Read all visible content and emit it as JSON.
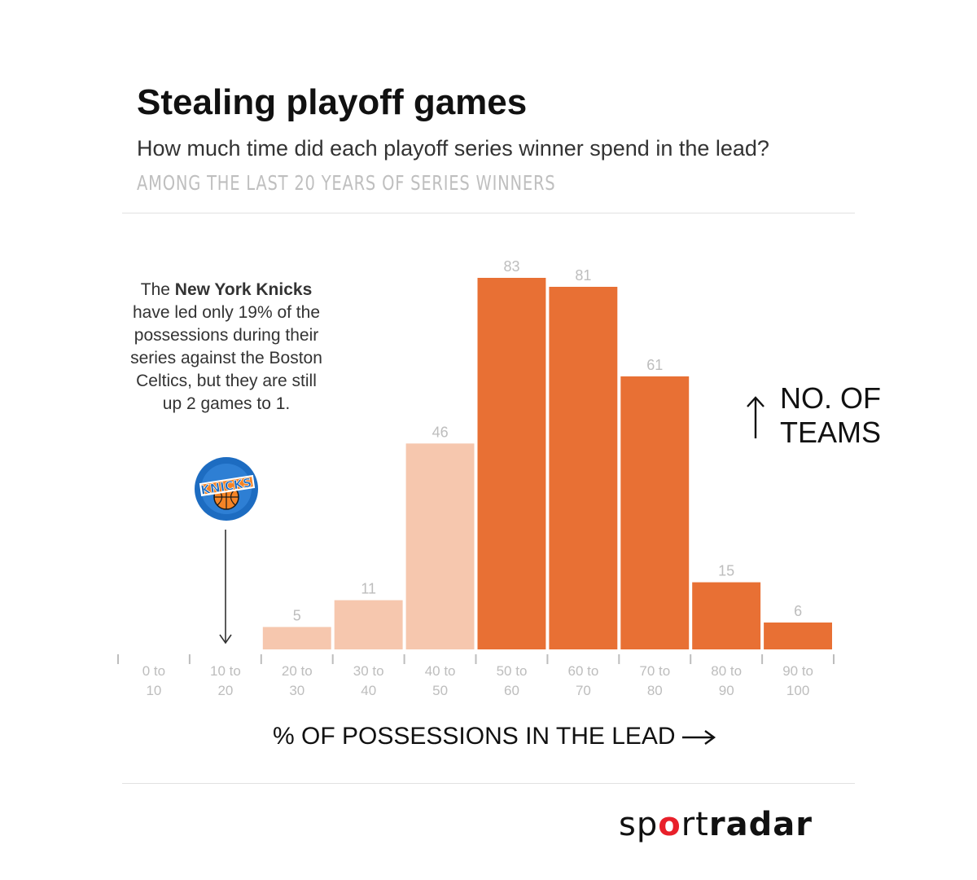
{
  "header": {
    "title": "Stealing playoff games",
    "subtitle": "How much time did each playoff series winner spend in the lead?",
    "kicker": "AMONG THE LAST 20 YEARS OF SERIES WINNERS"
  },
  "annotation": {
    "prefix": "The",
    "team": "New York Knicks",
    "text": "have led only 19% of the possessions during their series against the Boston Celtics, but they are still up 2 games to 1.",
    "logo_text": "KNICKS"
  },
  "y_axis_note": {
    "line1": "NO. OF",
    "line2": "TEAMS"
  },
  "x_axis_title": "% OF POSSESSIONS IN THE LEAD",
  "brand": {
    "part1": "sp",
    "part2": "o",
    "part3": "rt",
    "part4": "radar"
  },
  "colors": {
    "bar_light": "#f6c7ae",
    "bar_dark": "#e87034",
    "value_label": "#bdbdbd",
    "tick_label": "#bdbdbd",
    "knicks_blue": "#1d6cc1",
    "knicks_orange": "#f58426",
    "brand_red": "#e8202a"
  },
  "chart_data": {
    "type": "bar",
    "categories": [
      "0 to 10",
      "10 to 20",
      "20 to 30",
      "30 to 40",
      "40 to 50",
      "50 to 60",
      "60 to 70",
      "70 to 80",
      "80 to 90",
      "90 to 100"
    ],
    "category_lines": [
      [
        "0 to",
        "10"
      ],
      [
        "10 to",
        "20"
      ],
      [
        "20 to",
        "30"
      ],
      [
        "30 to",
        "40"
      ],
      [
        "40 to",
        "50"
      ],
      [
        "50 to",
        "60"
      ],
      [
        "60 to",
        "70"
      ],
      [
        "70 to",
        "80"
      ],
      [
        "80 to",
        "90"
      ],
      [
        "90 to",
        "100"
      ]
    ],
    "values": [
      0,
      0,
      5,
      11,
      46,
      83,
      81,
      61,
      15,
      6
    ],
    "value_labels": [
      "",
      "",
      "5",
      "11",
      "46",
      "83",
      "81",
      "61",
      "15",
      "6"
    ],
    "bar_shade": [
      "light",
      "light",
      "light",
      "light",
      "light",
      "dark",
      "dark",
      "dark",
      "dark",
      "dark"
    ],
    "highlight_category": "10 to 20",
    "xlabel": "% OF POSSESSIONS IN THE LEAD",
    "ylabel": "NO. OF TEAMS",
    "ylim": [
      0,
      83
    ],
    "grid": false,
    "legend": "none"
  }
}
